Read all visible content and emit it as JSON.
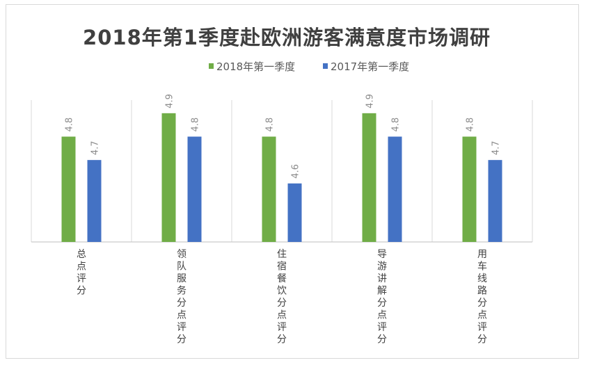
{
  "chart_data": {
    "type": "bar",
    "title": "2018年第1季度赴欧洲游客满意度市场调研",
    "categories": [
      "总点评分",
      "领队服务分点评分",
      "住宿餐饮分点评分",
      "导游讲解分点评分",
      "用车线路分点评分"
    ],
    "series": [
      {
        "name": "2018年第一季度",
        "values": [
          4.8,
          4.9,
          4.8,
          4.9,
          4.8
        ],
        "color": "#70ad47"
      },
      {
        "name": "2017年第一季度",
        "values": [
          4.7,
          4.8,
          4.6,
          4.8,
          4.7
        ],
        "color": "#4472c4"
      }
    ],
    "xlabel": "",
    "ylabel": "",
    "ylim": [
      4.35,
      4.95
    ],
    "grid": "vertical category separators",
    "legend_position": "top"
  }
}
